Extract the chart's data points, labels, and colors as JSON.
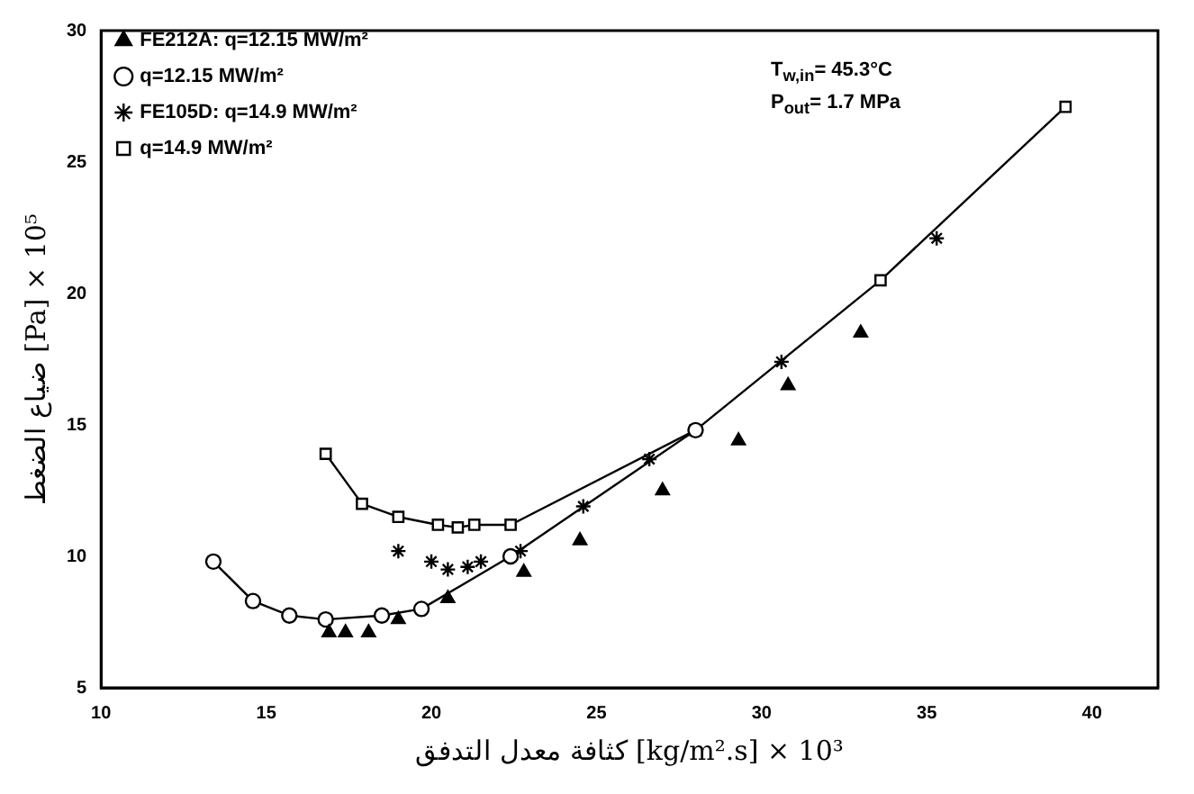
{
  "chart_data": {
    "type": "scatter",
    "xlabel": "كثافة معدل التدفق [kg/m².s] × 10³",
    "ylabel": "ضياع الضغط [Pa] × 10⁵",
    "xlim": [
      10,
      42
    ],
    "xticks": [
      10,
      15,
      20,
      25,
      30,
      35,
      40
    ],
    "ylim": [
      5,
      30
    ],
    "yticks": [
      5,
      10,
      15,
      20,
      25,
      30
    ],
    "grid": false,
    "legend": "top left",
    "annotations": [
      "T$_{w,in}$= 45.3°C",
      "P$_{out}$= 1.7 MPa"
    ],
    "series": [
      {
        "name": "FE212A: q=12.15 MW/m²",
        "type": "scatter",
        "marker": "triangle",
        "color": "#000000",
        "x": [
          16.9,
          17.4,
          18.1,
          19.0,
          20.5,
          22.8,
          24.5,
          27.0,
          29.3,
          30.8,
          33.0
        ],
        "values": [
          7.1,
          7.1,
          7.1,
          7.6,
          8.4,
          9.4,
          10.6,
          12.5,
          14.4,
          16.5,
          18.5
        ]
      },
      {
        "name": "q=12.15 MW/m²",
        "type": "line",
        "marker": "circle",
        "color": "#000000",
        "x": [
          13.4,
          14.6,
          15.7,
          16.8,
          18.5,
          19.7,
          22.4,
          28.0
        ],
        "values": [
          9.8,
          8.3,
          7.75,
          7.6,
          7.75,
          8.0,
          10.0,
          14.8
        ]
      },
      {
        "name": "FE105D: q=14.9 MW/m²",
        "type": "scatter",
        "marker": "cross",
        "color": "#000000",
        "x": [
          19.0,
          20.0,
          20.5,
          21.1,
          21.5,
          22.7,
          24.6,
          26.6,
          30.6,
          35.3
        ],
        "values": [
          10.2,
          9.8,
          9.5,
          9.6,
          9.8,
          10.2,
          11.9,
          13.7,
          17.4,
          22.1
        ]
      },
      {
        "name": "q=14.9 MW/m²",
        "type": "line",
        "marker": "square",
        "color": "#000000",
        "x": [
          16.8,
          17.9,
          19.0,
          20.2,
          20.8,
          21.3,
          22.4,
          28.0,
          33.6,
          39.2
        ],
        "values": [
          13.9,
          12.0,
          11.5,
          11.2,
          11.1,
          11.2,
          11.2,
          14.8,
          20.5,
          27.1
        ]
      }
    ]
  }
}
